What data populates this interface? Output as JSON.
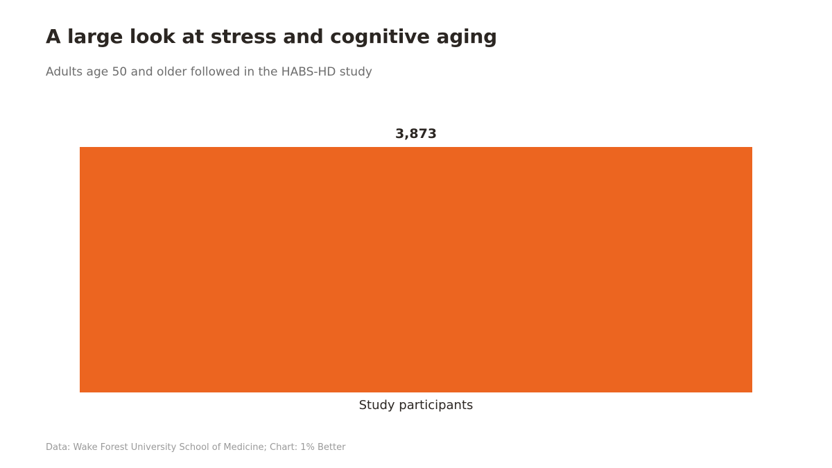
{
  "title": "A large look at stress and cognitive aging",
  "subtitle": "Adults age 50 and older followed in the HABS-HD study",
  "footer": "Data: Wake Forest University School of Medicine; Chart: 1% Better",
  "colors": {
    "bar": "#ec6520"
  },
  "chart_data": {
    "type": "bar",
    "categories": [
      "Study participants"
    ],
    "values": [
      3873
    ],
    "data_labels": [
      "3,873"
    ],
    "title": "A large look at stress and cognitive aging",
    "subtitle": "Adults age 50 and older followed in the HABS-HD study",
    "ylim": [
      0,
      3873
    ],
    "grid": false,
    "legend": "none"
  }
}
